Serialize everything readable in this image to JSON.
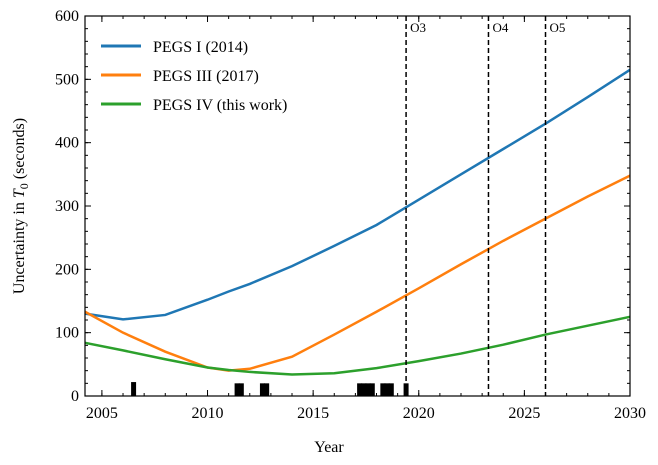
{
  "chart_data": {
    "type": "line",
    "xlabel": "Year",
    "ylabel": {
      "prefix": "Uncertainty in ",
      "symbol": "T",
      "subscript": "0",
      "suffix": " (seconds)"
    },
    "x": [
      2004.2,
      2006,
      2008,
      2010,
      2011,
      2012,
      2014,
      2016,
      2018,
      2020,
      2022,
      2024,
      2026,
      2028,
      2030
    ],
    "series": [
      {
        "name": "PEGS I (2014)",
        "color": "#1f77b4",
        "values": [
          130,
          121,
          128,
          152,
          165,
          177,
          205,
          237,
          270,
          310,
          350,
          390,
          430,
          472,
          515
        ]
      },
      {
        "name": "PEGS III (2017)",
        "color": "#ff7f0e",
        "values": [
          133,
          100,
          70,
          45,
          40,
          43,
          62,
          97,
          133,
          170,
          208,
          245,
          280,
          315,
          348
        ]
      },
      {
        "name": "PEGS IV (this work)",
        "color": "#2ca02c",
        "values": [
          84,
          72,
          58,
          45,
          41,
          38,
          34,
          36,
          44,
          55,
          67,
          81,
          97,
          111,
          125
        ]
      }
    ],
    "vlines": [
      {
        "x": 2019.4,
        "label": "O3"
      },
      {
        "x": 2023.3,
        "label": "O4"
      },
      {
        "x": 2026,
        "label": "O5"
      }
    ],
    "markers": {
      "x": [
        2006.5,
        2011.4,
        2011.6,
        2012.6,
        2012.8,
        2017.2,
        2017.4,
        2017.6,
        2017.8,
        2018.3,
        2018.5,
        2018.7,
        2019.4
      ],
      "values": [
        22,
        20,
        20,
        20,
        20,
        20,
        20,
        20,
        20,
        20,
        20,
        20,
        20
      ]
    },
    "xlim": [
      2004.2,
      2030
    ],
    "ylim": [
      0,
      600
    ],
    "xticks": [
      2005,
      2010,
      2015,
      2020,
      2025,
      2030
    ],
    "yticks": [
      0,
      100,
      200,
      300,
      400,
      500,
      600
    ],
    "legend": "upper left"
  }
}
